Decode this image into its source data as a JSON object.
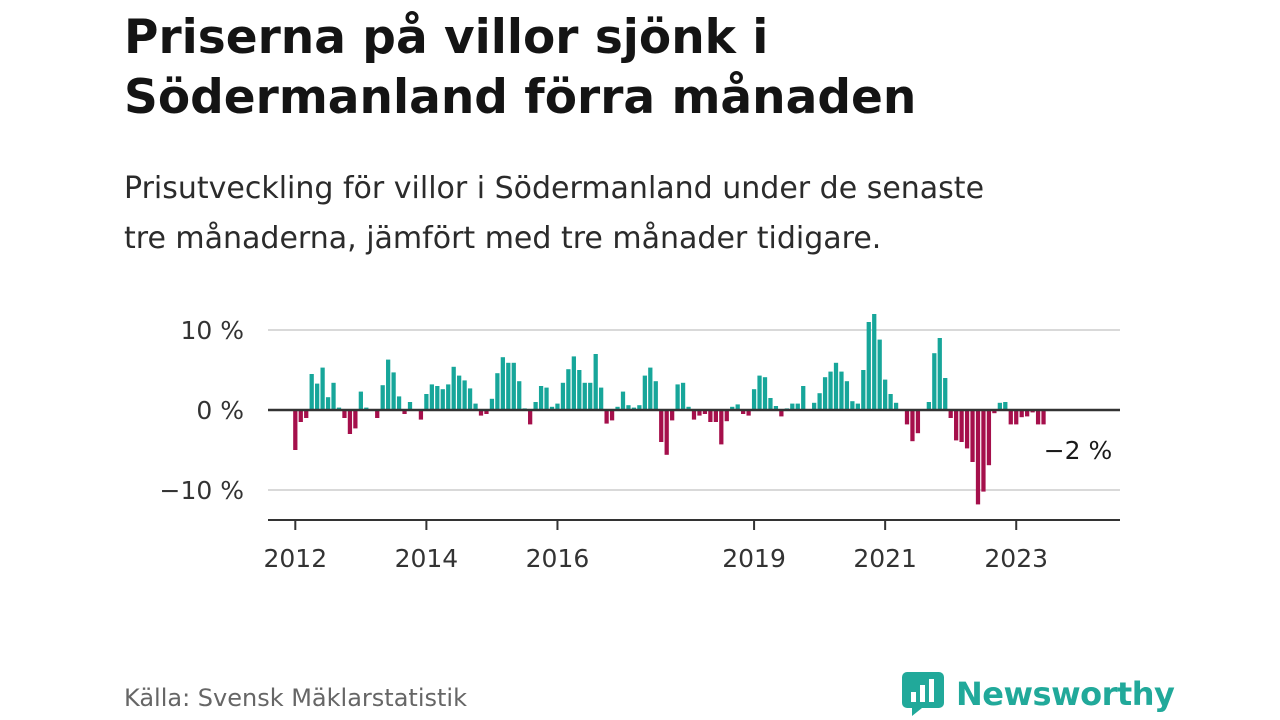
{
  "header": {
    "title_line1": "Priserna på villor sjönk i",
    "title_line2": "Södermanland förra månaden",
    "subtitle_line1": "Prisutveckling för villor i Södermanland under de senaste",
    "subtitle_line2": "tre månaderna, jämfört med tre månader tidigare."
  },
  "footer": {
    "source": "Källa: Svensk Mäklarstatistik",
    "brand": "Newsworthy",
    "brand_icon": "newsworthy-logo-icon"
  },
  "colors": {
    "positive": "#17a69a",
    "negative": "#a50f4b",
    "brand": "#21a99a"
  },
  "chart_data": {
    "type": "bar",
    "x_start": "2012-01",
    "x_end": "2024-01",
    "xlim": [
      "2011-08",
      "2024-08"
    ],
    "ylim": [
      -14,
      12
    ],
    "y_ticks": [
      {
        "value": 10,
        "label": "10 %"
      },
      {
        "value": 0,
        "label": "0 %"
      },
      {
        "value": -10,
        "label": "−10 %"
      }
    ],
    "x_ticks": [
      {
        "date": "2012-01",
        "label": "2012"
      },
      {
        "date": "2014-01",
        "label": "2014"
      },
      {
        "date": "2016-01",
        "label": "2016"
      },
      {
        "date": "2019-01",
        "label": "2019"
      },
      {
        "date": "2021-01",
        "label": "2021"
      },
      {
        "date": "2023-01",
        "label": "2023"
      }
    ],
    "grid": true,
    "end_label": "−2 %",
    "values": [
      -5,
      -1.5,
      -1,
      4.5,
      3.3,
      5.3,
      1.6,
      3.4,
      0.3,
      -1,
      -3,
      -2.3,
      2.3,
      0.3,
      0,
      -1,
      3.1,
      6.3,
      4.7,
      1.7,
      -0.5,
      1.0,
      0,
      -1.2,
      2.0,
      3.2,
      3.0,
      2.6,
      3.2,
      5.4,
      4.3,
      3.7,
      2.7,
      0.8,
      -0.7,
      -0.5,
      1.4,
      4.6,
      6.6,
      5.9,
      5.9,
      3.6,
      0.2,
      -1.8,
      1.0,
      3.0,
      2.8,
      0.4,
      0.8,
      3.4,
      5.1,
      6.7,
      5.0,
      3.4,
      3.4,
      7.0,
      2.8,
      -1.7,
      -1.3,
      0.4,
      2.3,
      0.6,
      0.3,
      0.6,
      4.3,
      5.3,
      3.6,
      -4.0,
      -5.6,
      -1.3,
      3.2,
      3.4,
      0.4,
      -1.2,
      -0.7,
      -0.5,
      -1.5,
      -1.5,
      -4.3,
      -1.4,
      0.4,
      0.7,
      -0.5,
      -0.7,
      2.6,
      4.3,
      4.1,
      1.5,
      0.5,
      -0.8,
      0.2,
      0.8,
      0.8,
      3.0,
      0,
      0.9,
      2.1,
      4.1,
      4.8,
      5.9,
      4.8,
      3.6,
      1.1,
      0.8,
      5.0,
      11.0,
      12.0,
      8.8,
      3.8,
      2.0,
      0.9,
      0,
      -1.8,
      -3.9,
      -2.9,
      0.1,
      1.0,
      7.1,
      9.0,
      4.0,
      -1.0,
      -3.8,
      -4.0,
      -4.8,
      -6.5,
      -11.8,
      -10.2,
      -6.9,
      -0.4,
      0.9,
      1.0,
      -1.8,
      -1.8,
      -0.9,
      -0.8,
      -0.3,
      -1.8,
      -1.8
    ]
  }
}
